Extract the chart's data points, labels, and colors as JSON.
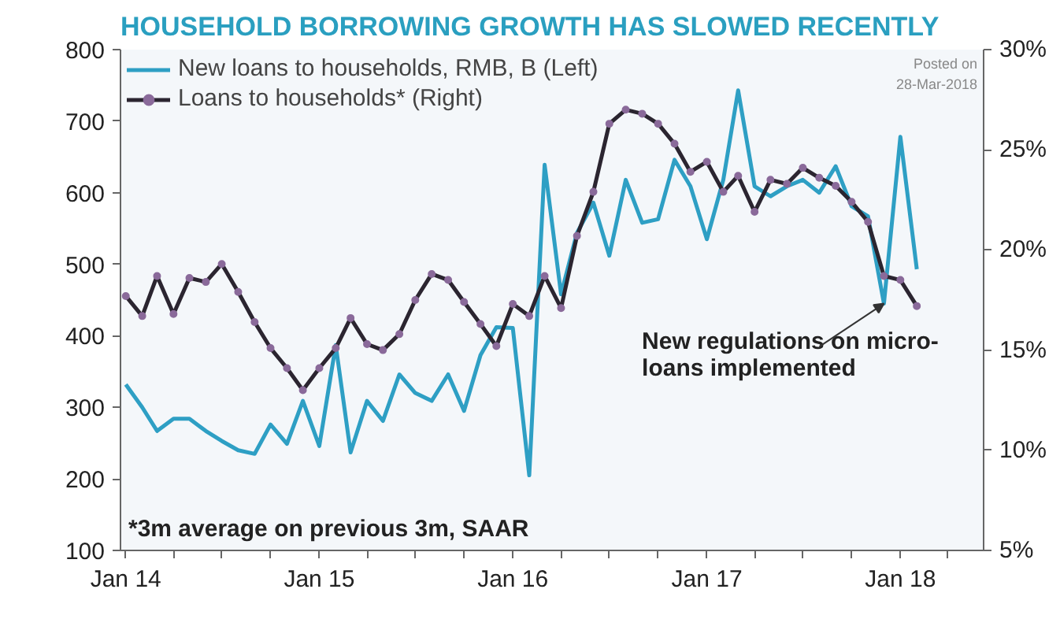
{
  "chart_data": {
    "type": "line",
    "title": "HOUSEHOLD BORROWING GROWTH HAS SLOWED RECENTLY",
    "x": [
      "2014-01",
      "2014-02",
      "2014-03",
      "2014-04",
      "2014-05",
      "2014-06",
      "2014-07",
      "2014-08",
      "2014-09",
      "2014-10",
      "2014-11",
      "2014-12",
      "2015-01",
      "2015-02",
      "2015-03",
      "2015-04",
      "2015-05",
      "2015-06",
      "2015-07",
      "2015-08",
      "2015-09",
      "2015-10",
      "2015-11",
      "2015-12",
      "2016-01",
      "2016-02",
      "2016-03",
      "2016-04",
      "2016-05",
      "2016-06",
      "2016-07",
      "2016-08",
      "2016-09",
      "2016-10",
      "2016-11",
      "2016-12",
      "2017-01",
      "2017-02",
      "2017-03",
      "2017-04",
      "2017-05",
      "2017-06",
      "2017-07",
      "2017-08",
      "2017-09",
      "2017-10",
      "2017-11",
      "2017-12",
      "2018-01",
      "2018-02"
    ],
    "series": [
      {
        "name": "New loans to households, RMB, B (Left)",
        "color": "#2e9fc4",
        "marker": "none",
        "values": [
          332,
          300,
          267,
          284,
          284,
          267,
          253,
          240,
          235,
          276,
          249,
          309,
          246,
          387,
          237,
          309,
          281,
          346,
          320,
          309,
          346,
          295,
          373,
          412,
          411,
          205,
          639,
          458,
          544,
          586,
          512,
          618,
          558,
          563,
          646,
          609,
          535,
          618,
          743,
          609,
          595,
          609,
          618,
          600,
          637,
          581,
          567,
          445,
          678,
          493
        ]
      },
      {
        "name": "Loans to households* (Right)",
        "color": "#2b2530",
        "marker": "circle",
        "axis": "y2",
        "values": [
          17.7,
          16.7,
          18.7,
          16.8,
          18.6,
          18.4,
          19.3,
          17.9,
          16.4,
          15.1,
          14.1,
          13.0,
          14.1,
          15.1,
          16.6,
          15.3,
          15.0,
          15.8,
          17.5,
          18.8,
          18.5,
          17.4,
          16.3,
          15.2,
          17.3,
          16.7,
          18.7,
          17.1,
          20.7,
          22.9,
          26.3,
          27.0,
          26.8,
          26.3,
          25.3,
          23.9,
          24.4,
          22.9,
          23.7,
          21.9,
          23.5,
          23.3,
          24.1,
          23.6,
          23.2,
          22.4,
          21.4,
          18.7,
          18.5,
          17.2
        ]
      }
    ],
    "xlim": [
      "2013-12-22",
      "2018-06-07"
    ],
    "xticks": [
      {
        "value": "2014-01",
        "label": "Jan 14"
      },
      {
        "value": "2014-04",
        "label": null
      },
      {
        "value": "2014-07",
        "label": null
      },
      {
        "value": "2014-10",
        "label": null
      },
      {
        "value": "2015-01",
        "label": "Jan 15"
      },
      {
        "value": "2015-04",
        "label": null
      },
      {
        "value": "2015-07",
        "label": null
      },
      {
        "value": "2015-10",
        "label": null
      },
      {
        "value": "2016-01",
        "label": "Jan 16"
      },
      {
        "value": "2016-04",
        "label": null
      },
      {
        "value": "2016-07",
        "label": null
      },
      {
        "value": "2016-10",
        "label": null
      },
      {
        "value": "2017-01",
        "label": "Jan 17"
      },
      {
        "value": "2017-04",
        "label": null
      },
      {
        "value": "2017-07",
        "label": null
      },
      {
        "value": "2017-10",
        "label": null
      },
      {
        "value": "2018-01",
        "label": "Jan 18"
      },
      {
        "value": "2018-04",
        "label": null
      }
    ],
    "ylim": [
      100,
      800
    ],
    "yticks": [
      100,
      200,
      300,
      400,
      500,
      600,
      700,
      800
    ],
    "y2lim": [
      5,
      30
    ],
    "y2ticks": [
      {
        "value": 5,
        "label": "5%"
      },
      {
        "value": 10,
        "label": "10%"
      },
      {
        "value": 15,
        "label": "15%"
      },
      {
        "value": 20,
        "label": "20%"
      },
      {
        "value": 25,
        "label": "25%"
      },
      {
        "value": 30,
        "label": "30%"
      }
    ],
    "annotations": [
      {
        "text": "New regulations on micro-\nloans implemented",
        "x": "2017-12",
        "y": 445
      },
      "*3m average on previous 3m, SAAR",
      "Posted on\n28-Mar-2018"
    ],
    "grid": false,
    "legend": "top left",
    "line_style": "solid"
  }
}
